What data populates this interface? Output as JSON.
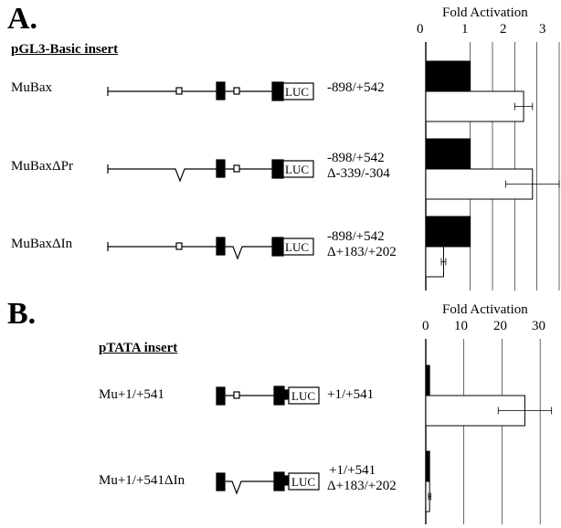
{
  "panel_a": {
    "letter": "A.",
    "insert_label": "pGL3-Basic insert",
    "constructs": [
      {
        "name": "MuBax",
        "range": [
          "-898/+542"
        ],
        "luc": "LUC"
      },
      {
        "name": "MuBaxΔPr",
        "range": [
          "-898/+542",
          "Δ-339/-304"
        ],
        "luc": "LUC"
      },
      {
        "name": "MuBaxΔIn",
        "range": [
          "-898/+542",
          "Δ+183/+202"
        ],
        "luc": "LUC"
      }
    ]
  },
  "panel_b": {
    "letter": "B.",
    "insert_label": "pTATA insert",
    "constructs": [
      {
        "name": "Mu+1/+541",
        "range": [
          "+1/+541"
        ],
        "luc": "LUC"
      },
      {
        "name": "Mu+1/+541ΔIn",
        "range": [
          "+1/+541",
          "Δ+183/+202"
        ],
        "luc": "LUC"
      }
    ]
  },
  "chart_data": [
    {
      "type": "bar",
      "title": "Fold Activation",
      "xlim": [
        0,
        3
      ],
      "ticks": [
        "0",
        "1",
        "2",
        "3"
      ],
      "grid": true,
      "categories": [
        "MuBax",
        "MuBaxΔPr",
        "MuBaxΔIn"
      ],
      "series": [
        {
          "color": "#000000",
          "values": [
            1.0,
            1.0,
            1.0
          ]
        },
        {
          "color": "#ffffff",
          "values": [
            2.2,
            2.4,
            0.4
          ],
          "error": [
            0.2,
            0.6,
            0.05
          ]
        }
      ]
    },
    {
      "type": "bar",
      "title": "Fold Activation",
      "xlim": [
        0,
        35
      ],
      "ticks": [
        "0",
        "10",
        "20",
        "30"
      ],
      "grid": true,
      "categories": [
        "Mu+1/+541",
        "Mu+1/+541ΔIn"
      ],
      "series": [
        {
          "color": "#000000",
          "values": [
            1.0,
            1.0
          ]
        },
        {
          "color": "#ffffff",
          "values": [
            26,
            1.0
          ],
          "error": [
            7,
            0.3
          ]
        }
      ]
    }
  ]
}
